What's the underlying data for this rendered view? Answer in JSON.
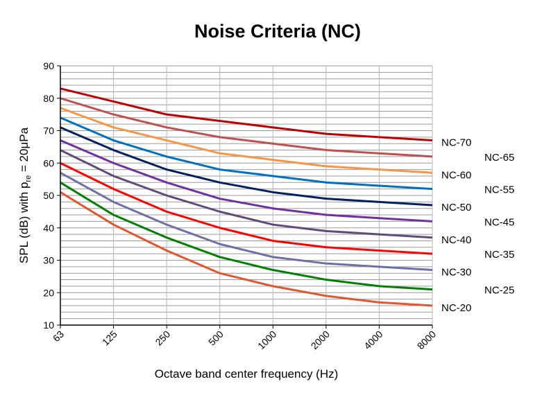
{
  "chart_data": {
    "type": "line",
    "title": "Noise Criteria (NC)",
    "xlabel": "Octave band center frequency (Hz)",
    "ylabel": "SPL (dB) with p",
    "ylabel_sub": "re",
    "ylabel_tail": " = 20μPa",
    "categories": [
      "63",
      "125",
      "250",
      "500",
      "1000",
      "2000",
      "4000",
      "8000"
    ],
    "ylim": [
      10,
      90
    ],
    "yticks": [
      10,
      20,
      30,
      40,
      50,
      60,
      70,
      80,
      90
    ],
    "grid": true,
    "legend": "right (inline labels)",
    "series": [
      {
        "name": "NC-70",
        "color": "#C00000",
        "values": [
          83,
          79,
          75,
          73,
          71,
          69,
          68,
          67
        ]
      },
      {
        "name": "NC-65",
        "color": "#C0504D",
        "values": [
          80,
          75,
          71,
          68,
          66,
          64,
          63,
          62
        ]
      },
      {
        "name": "NC-60",
        "color": "#F79646",
        "values": [
          77,
          71,
          67,
          63,
          61,
          59,
          58,
          57
        ]
      },
      {
        "name": "NC-55",
        "color": "#0070C0",
        "values": [
          74,
          67,
          62,
          58,
          56,
          54,
          53,
          52
        ]
      },
      {
        "name": "NC-50",
        "color": "#002060",
        "values": [
          71,
          64,
          58,
          54,
          51,
          49,
          48,
          47
        ]
      },
      {
        "name": "NC-45",
        "color": "#7030A0",
        "values": [
          67,
          60,
          54,
          49,
          46,
          44,
          43,
          42
        ]
      },
      {
        "name": "NC-40",
        "color": "#604A7B",
        "values": [
          64,
          56,
          50,
          45,
          41,
          39,
          38,
          37
        ]
      },
      {
        "name": "NC-35",
        "color": "#FF0000",
        "values": [
          60,
          52,
          45,
          40,
          36,
          34,
          33,
          32
        ]
      },
      {
        "name": "NC-30",
        "color": "#7070A8",
        "values": [
          57,
          48,
          41,
          35,
          31,
          29,
          28,
          27
        ]
      },
      {
        "name": "NC-25",
        "color": "#008000",
        "values": [
          54,
          44,
          37,
          31,
          27,
          24,
          22,
          21
        ]
      },
      {
        "name": "NC-20",
        "color": "#E0562E",
        "values": [
          51,
          41,
          33,
          26,
          22,
          19,
          17,
          16
        ]
      }
    ]
  }
}
